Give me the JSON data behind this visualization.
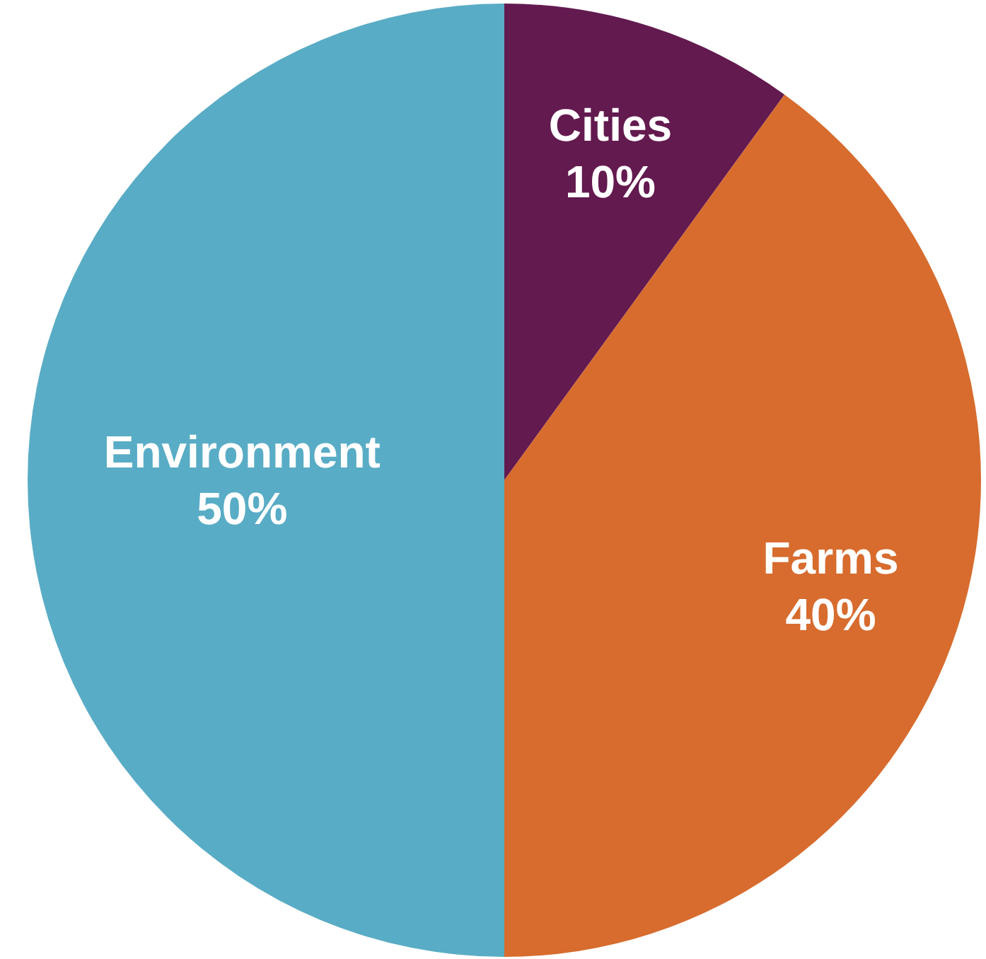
{
  "chart_data": {
    "type": "pie",
    "categories": [
      "Cities",
      "Farms",
      "Environment"
    ],
    "values": [
      10,
      40,
      50
    ],
    "colors": [
      "#631a4f",
      "#d76c2e",
      "#59acc5"
    ],
    "value_labels": [
      "10%",
      "40%",
      "50%"
    ]
  }
}
